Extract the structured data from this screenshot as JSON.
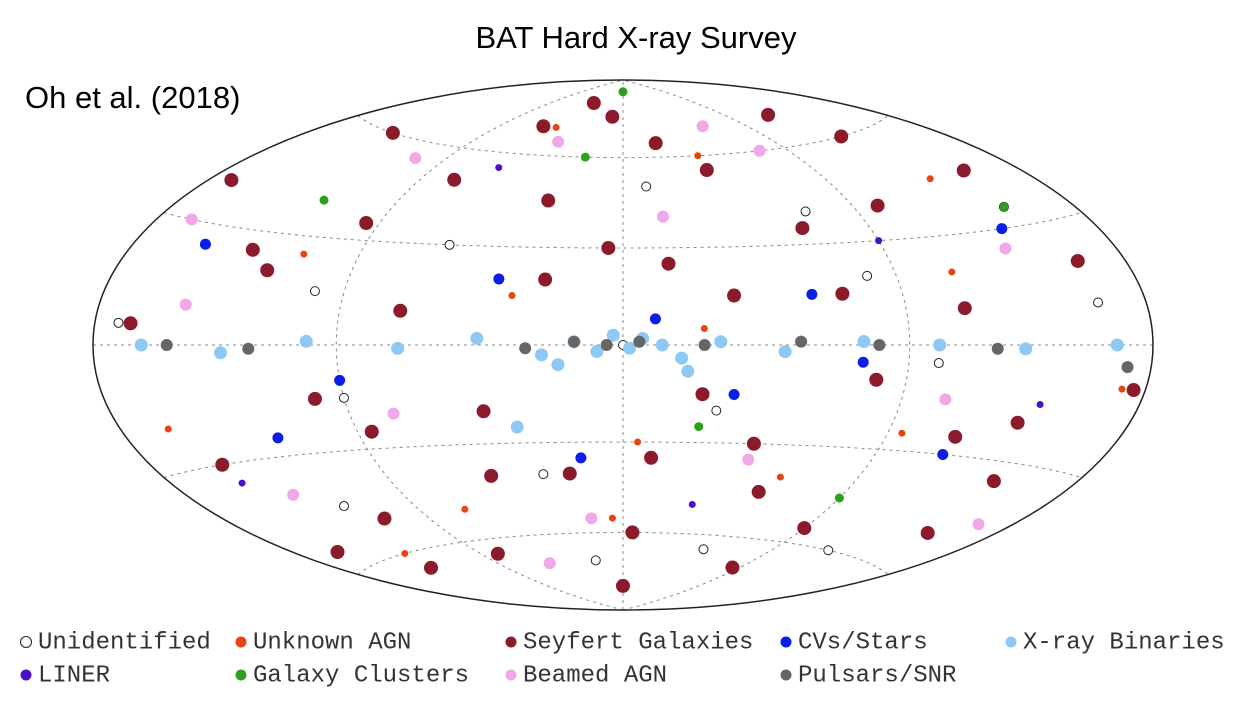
{
  "chart_data": {
    "type": "scatter",
    "title": "BAT Hard X-ray Survey",
    "annotation": "Oh et al. (2018)",
    "xlim": [
      -180,
      180
    ],
    "ylim": [
      -90,
      90
    ],
    "projection": "hammer",
    "series": [
      {
        "name": "Unidentified",
        "color": "#ffffff",
        "x": [
          -170,
          -120,
          -60,
          -20,
          30,
          70,
          120,
          160,
          -90,
          10,
          -140,
          100,
          -30,
          50,
          150,
          0,
          -100,
          80
        ],
        "y": [
          5,
          -45,
          30,
          -70,
          -20,
          40,
          -60,
          10,
          -15,
          50,
          60,
          -5,
          -40,
          -65,
          35,
          0,
          15,
          20
        ]
      },
      {
        "name": "Unknown AGN",
        "color": "#e8440f",
        "x": [
          -160,
          -110,
          -70,
          -35,
          5,
          40,
          95,
          135,
          170,
          -130,
          -50,
          60,
          110,
          -5,
          25
        ],
        "y": [
          -20,
          25,
          -50,
          15,
          -30,
          60,
          -25,
          45,
          -10,
          -60,
          70,
          -40,
          20,
          -55,
          5
        ]
      },
      {
        "name": "Seyfert Galaxies",
        "color": "#8b1a2b",
        "x": [
          -170,
          -150,
          -140,
          -120,
          -110,
          -95,
          -80,
          -70,
          -60,
          -45,
          -30,
          -20,
          -10,
          5,
          15,
          25,
          40,
          55,
          70,
          85,
          100,
          115,
          130,
          145,
          160,
          175,
          -160,
          -130,
          -100,
          -75,
          -50,
          -25,
          0,
          20,
          45,
          65,
          90,
          110,
          135,
          155,
          -165,
          -135,
          -85,
          -40,
          10,
          35,
          80,
          120,
          150,
          -5
        ],
        "y": [
          40,
          -30,
          60,
          20,
          -50,
          35,
          -65,
          10,
          70,
          -20,
          45,
          -40,
          75,
          -60,
          25,
          -15,
          55,
          -45,
          15,
          -70,
          40,
          -25,
          60,
          -35,
          20,
          -10,
          -55,
          25,
          -15,
          50,
          -40,
          20,
          -80,
          65,
          -30,
          35,
          -55,
          10,
          -20,
          45,
          5,
          -65,
          -25,
          80,
          -35,
          15,
          -10,
          70,
          -50,
          30
        ]
      },
      {
        "name": "CVs/Stars",
        "color": "#0a1ee8",
        "x": [
          -150,
          -90,
          -40,
          -15,
          10,
          35,
          75,
          140,
          -120,
          60,
          115
        ],
        "y": [
          25,
          -10,
          20,
          -35,
          8,
          -15,
          -5,
          30,
          -25,
          15,
          -30
        ]
      },
      {
        "name": "X-ray Binaries",
        "color": "#8ec8f5",
        "x": [
          -160,
          -130,
          -100,
          -70,
          -45,
          -25,
          -15,
          -8,
          -3,
          2,
          6,
          12,
          18,
          30,
          50,
          75,
          100,
          130,
          165,
          20,
          -20,
          -35
        ],
        "y": [
          0,
          -2,
          1,
          -1,
          2,
          -3,
          1,
          -2,
          3,
          -1,
          2,
          0,
          -4,
          1,
          -2,
          1,
          0,
          -1,
          0,
          -8,
          -6,
          -25
        ]
      },
      {
        "name": "LINER",
        "color": "#4a0fc8",
        "x": [
          -150,
          -60,
          30,
          90,
          140
        ],
        "y": [
          -35,
          55,
          -50,
          30,
          -15
        ]
      },
      {
        "name": "Galaxy Clusters",
        "color": "#2ca01c",
        "x": [
          -120,
          -20,
          0,
          25,
          90,
          150
        ],
        "y": [
          40,
          60,
          85,
          -25,
          -45,
          35
        ]
      },
      {
        "name": "Beamed AGN",
        "color": "#f0a8e8",
        "x": [
          -165,
          -135,
          -105,
          -75,
          -40,
          -15,
          15,
          45,
          75,
          105,
          135,
          165,
          -55,
          60,
          -145
        ],
        "y": [
          30,
          -40,
          55,
          -20,
          65,
          -55,
          40,
          -35,
          60,
          -15,
          25,
          -45,
          -70,
          70,
          10
        ]
      },
      {
        "name": "Pulsars/SNR",
        "color": "#666666",
        "x": [
          -150,
          -120,
          -30,
          -15,
          -5,
          5,
          25,
          55,
          80,
          120,
          170
        ],
        "y": [
          0,
          -1,
          -1,
          1,
          0,
          1,
          0,
          1,
          0,
          -1,
          -5
        ]
      }
    ]
  }
}
